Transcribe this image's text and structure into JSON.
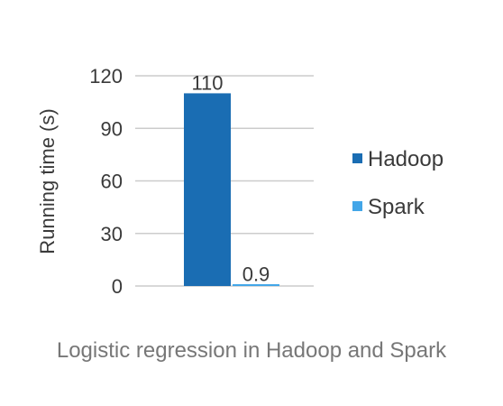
{
  "chart_data": {
    "type": "bar",
    "categories": [
      "Hadoop",
      "Spark"
    ],
    "values": [
      110,
      0.9
    ],
    "data_labels": [
      "110",
      "0.9"
    ],
    "ylabel": "Running time (s)",
    "xlabel": "",
    "ylim": [
      0,
      120
    ],
    "yticks": [
      0,
      30,
      60,
      90,
      120
    ],
    "grid": true,
    "legend": {
      "position": "right",
      "entries": [
        {
          "name": "Hadoop",
          "color": "#1a6db3"
        },
        {
          "name": "Spark",
          "color": "#43a6e8"
        }
      ]
    },
    "caption": "Logistic regression in Hadoop and Spark"
  }
}
